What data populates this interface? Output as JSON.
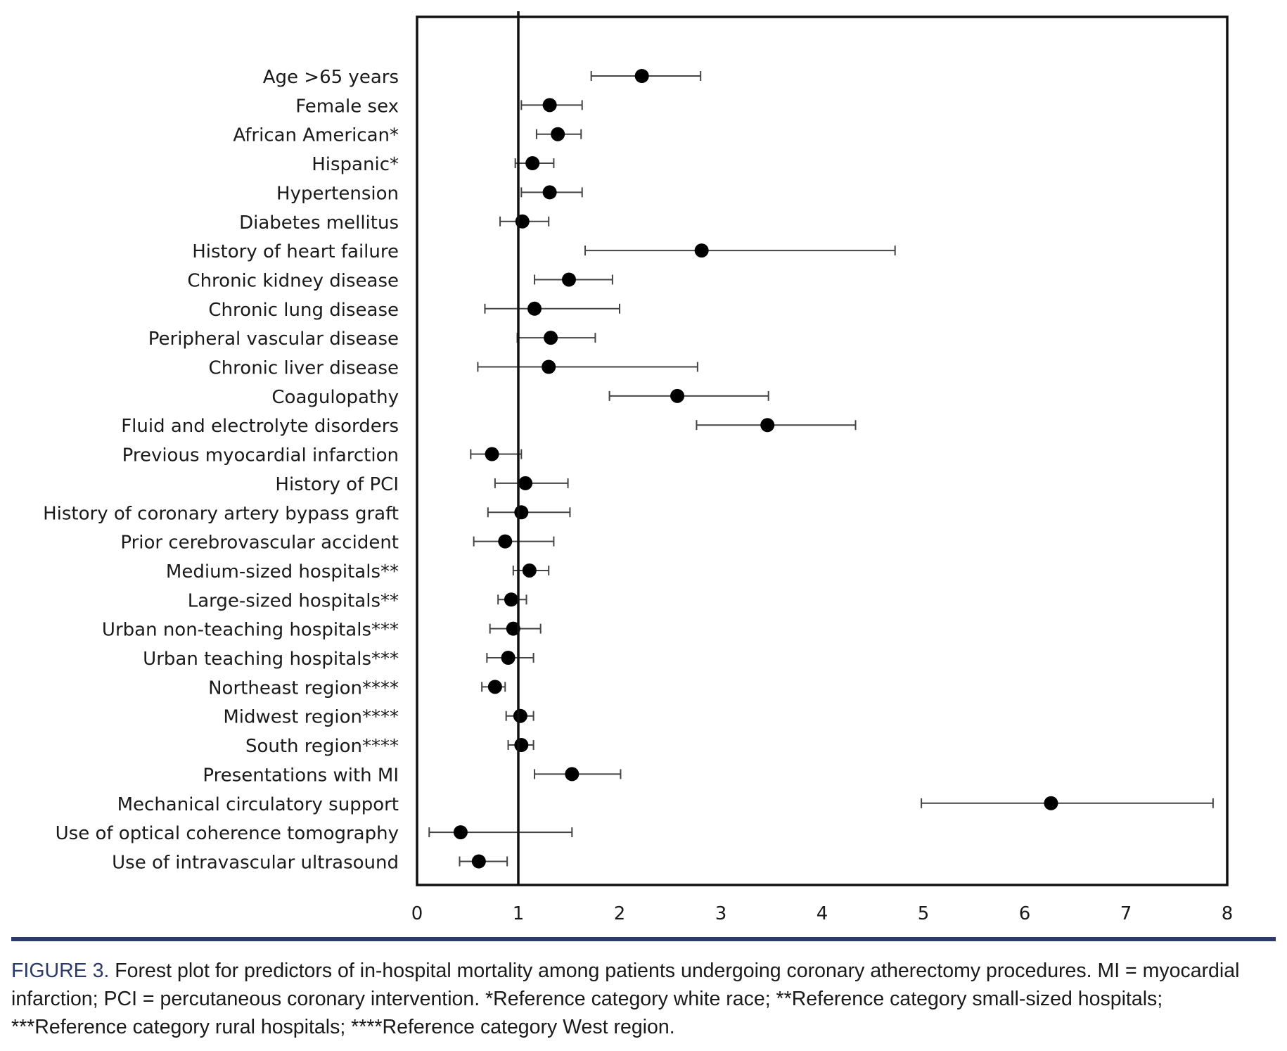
{
  "chart_data": {
    "type": "forest",
    "xlim": [
      0,
      8
    ],
    "reference_line": 1,
    "xticks": [
      "0",
      "1",
      "2",
      "3",
      "4",
      "5",
      "6",
      "7",
      "8"
    ],
    "rows": [
      {
        "label": "Age >65 years",
        "estimate": 2.22,
        "lower": 1.72,
        "upper": 2.8
      },
      {
        "label": "Female sex",
        "estimate": 1.31,
        "lower": 1.03,
        "upper": 1.63
      },
      {
        "label": "African American*",
        "estimate": 1.39,
        "lower": 1.18,
        "upper": 1.62
      },
      {
        "label": "Hispanic*",
        "estimate": 1.14,
        "lower": 0.97,
        "upper": 1.35
      },
      {
        "label": "Hypertension",
        "estimate": 1.31,
        "lower": 1.03,
        "upper": 1.63
      },
      {
        "label": "Diabetes mellitus",
        "estimate": 1.04,
        "lower": 0.82,
        "upper": 1.3
      },
      {
        "label": "History of heart failure",
        "estimate": 2.81,
        "lower": 1.66,
        "upper": 4.72
      },
      {
        "label": "Chronic kidney disease",
        "estimate": 1.5,
        "lower": 1.16,
        "upper": 1.93
      },
      {
        "label": "Chronic lung disease",
        "estimate": 1.16,
        "lower": 0.67,
        "upper": 2.0
      },
      {
        "label": "Peripheral vascular disease",
        "estimate": 1.32,
        "lower": 0.99,
        "upper": 1.76
      },
      {
        "label": "Chronic liver disease",
        "estimate": 1.3,
        "lower": 0.6,
        "upper": 2.77
      },
      {
        "label": "Coagulopathy",
        "estimate": 2.57,
        "lower": 1.9,
        "upper": 3.47
      },
      {
        "label": "Fluid and electrolyte disorders",
        "estimate": 3.46,
        "lower": 2.76,
        "upper": 4.33
      },
      {
        "label": "Previous myocardial infarction",
        "estimate": 0.74,
        "lower": 0.53,
        "upper": 1.03
      },
      {
        "label": "History of PCI",
        "estimate": 1.07,
        "lower": 0.77,
        "upper": 1.49
      },
      {
        "label": "History of coronary artery bypass graft",
        "estimate": 1.03,
        "lower": 0.7,
        "upper": 1.51
      },
      {
        "label": "Prior cerebrovascular accident",
        "estimate": 0.87,
        "lower": 0.56,
        "upper": 1.35
      },
      {
        "label": "Medium-sized hospitals**",
        "estimate": 1.11,
        "lower": 0.95,
        "upper": 1.3
      },
      {
        "label": "Large-sized hospitals**",
        "estimate": 0.93,
        "lower": 0.8,
        "upper": 1.08
      },
      {
        "label": "Urban non-teaching hospitals***",
        "estimate": 0.95,
        "lower": 0.72,
        "upper": 1.22
      },
      {
        "label": "Urban teaching hospitals***",
        "estimate": 0.9,
        "lower": 0.69,
        "upper": 1.15
      },
      {
        "label": "Northeast region****",
        "estimate": 0.77,
        "lower": 0.64,
        "upper": 0.87
      },
      {
        "label": "Midwest region****",
        "estimate": 1.02,
        "lower": 0.88,
        "upper": 1.15
      },
      {
        "label": "South region****",
        "estimate": 1.03,
        "lower": 0.9,
        "upper": 1.15
      },
      {
        "label": "Presentations with MI",
        "estimate": 1.53,
        "lower": 1.16,
        "upper": 2.01
      },
      {
        "label": "Mechanical circulatory support",
        "estimate": 6.26,
        "lower": 4.98,
        "upper": 7.86
      },
      {
        "label": "Use of optical coherence tomography",
        "estimate": 0.43,
        "lower": 0.12,
        "upper": 1.53
      },
      {
        "label": "Use of intravascular ultrasound",
        "estimate": 0.61,
        "lower": 0.42,
        "upper": 0.89
      }
    ]
  },
  "caption": {
    "figure_label": "FIGURE 3.",
    "text": " Forest plot for predictors of in-hospital mortality among patients undergoing coronary atherectomy procedures. MI = myocardial infarction; PCI = percutaneous coronary intervention. *Reference category white race; **Reference category small-sized hospitals; ***Reference category rural hospitals; ****Reference category West region."
  }
}
